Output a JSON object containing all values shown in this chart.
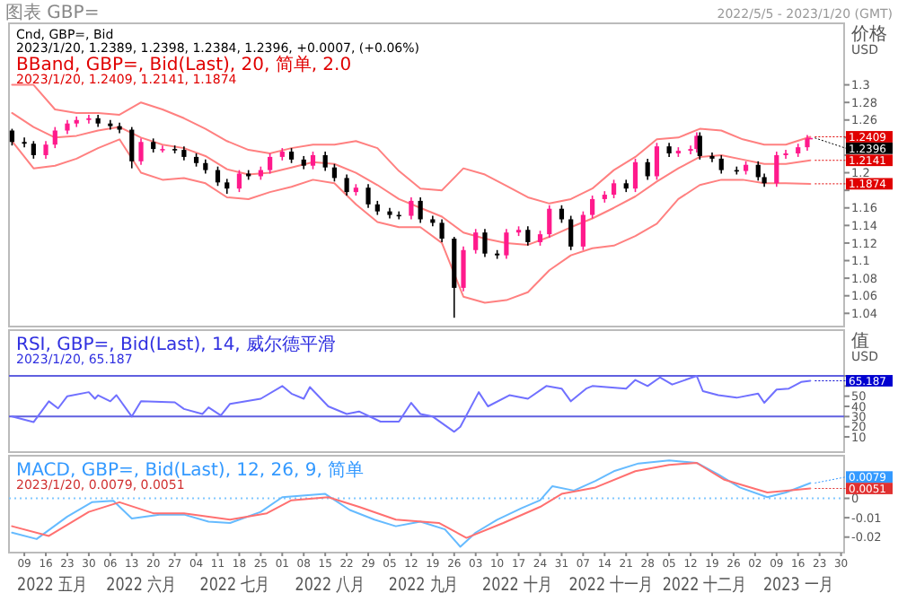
{
  "chart_data": [
    {
      "type": "candlestick",
      "title": "图表 GBP=",
      "subtitle": "2022/5/5 - 2023/1/20 (GMT)",
      "ylabel": "价格 USD",
      "tick_labels": "y",
      "annotations": [
        "Cnd, GBP=, Bid",
        "2023/1/20, 1.2389, 1.2398, 1.2384, 1.2396, +0.0007, (+0.06%)",
        "BBand, GBP=, Bid(Last), 20, 简单, 2.0",
        "2023/1/20, 1.2409, 1.2141, 1.1874",
        {
          "text": "1.2409",
          "x": "2023-01-20",
          "y": 1.2409
        },
        {
          "text": "1.2396",
          "x": "2023-01-20",
          "y": 1.2396
        },
        {
          "text": "1.2141",
          "x": "2023-01-20",
          "y": 1.2141
        },
        {
          "text": "1.1874",
          "x": "2023-01-20",
          "y": 1.1874
        }
      ],
      "xlim": [
        "2022-05-04",
        "2023-01-31"
      ],
      "ylim": [
        1.025,
        1.37
      ],
      "yticks": [
        1.04,
        1.06,
        1.08,
        1.1,
        1.12,
        1.14,
        1.16,
        {
          "value": 1.18,
          "label": null
        },
        1.2,
        {
          "value": 1.22,
          "label": null
        },
        {
          "value": 1.24,
          "label": null
        },
        1.26,
        1.28,
        1.3
      ],
      "x": [
        "2022-05-05",
        "2022-05-09",
        "2022-05-12",
        "2022-05-16",
        "2022-05-19",
        "2022-05-23",
        "2022-05-26",
        "2022-05-30",
        "2022-06-02",
        "2022-06-06",
        "2022-06-09",
        "2022-06-13",
        "2022-06-16",
        "2022-06-20",
        "2022-06-23",
        "2022-06-27",
        "2022-06-30",
        "2022-07-04",
        "2022-07-07",
        "2022-07-11",
        "2022-07-14",
        "2022-07-18",
        "2022-07-21",
        "2022-07-25",
        "2022-07-28",
        "2022-08-01",
        "2022-08-04",
        "2022-08-08",
        "2022-08-11",
        "2022-08-15",
        "2022-08-18",
        "2022-08-22",
        "2022-08-25",
        "2022-08-29",
        "2022-09-01",
        "2022-09-05",
        "2022-09-08",
        "2022-09-12",
        "2022-09-15",
        "2022-09-19",
        "2022-09-22",
        "2022-09-26",
        "2022-09-29",
        "2022-10-03",
        "2022-10-06",
        "2022-10-10",
        "2022-10-13",
        "2022-10-17",
        "2022-10-20",
        "2022-10-24",
        "2022-10-27",
        "2022-10-31",
        "2022-11-03",
        "2022-11-07",
        "2022-11-10",
        "2022-11-14",
        "2022-11-17",
        "2022-11-21",
        "2022-11-24",
        "2022-11-28",
        "2022-12-01",
        "2022-12-05",
        "2022-12-08",
        "2022-12-12",
        "2022-12-14",
        "2022-12-15",
        "2022-12-19",
        "2022-12-22",
        "2022-12-27",
        "2022-12-30",
        "2023-01-03",
        "2023-01-05",
        "2023-01-09",
        "2023-01-12",
        "2023-01-16",
        "2023-01-19",
        "2023-01-20"
      ],
      "ohlc": [
        [
          1.248,
          1.25,
          1.231,
          1.235
        ],
        [
          1.235,
          1.24,
          1.229,
          1.233
        ],
        [
          1.233,
          1.236,
          1.216,
          1.22
        ],
        [
          1.22,
          1.236,
          1.216,
          1.232
        ],
        [
          1.232,
          1.252,
          1.228,
          1.248
        ],
        [
          1.248,
          1.26,
          1.244,
          1.256
        ],
        [
          1.256,
          1.264,
          1.252,
          1.26
        ],
        [
          1.26,
          1.266,
          1.256,
          1.262
        ],
        [
          1.262,
          1.266,
          1.252,
          1.256
        ],
        [
          1.256,
          1.26,
          1.249,
          1.253
        ],
        [
          1.253,
          1.257,
          1.245,
          1.249
        ],
        [
          1.249,
          1.252,
          1.205,
          1.213
        ],
        [
          1.213,
          1.239,
          1.209,
          1.235
        ],
        [
          1.235,
          1.239,
          1.223,
          1.227
        ],
        [
          1.227,
          1.231,
          1.223,
          1.227
        ],
        [
          1.227,
          1.231,
          1.222,
          1.226
        ],
        [
          1.226,
          1.23,
          1.214,
          1.218
        ],
        [
          1.218,
          1.222,
          1.207,
          1.211
        ],
        [
          1.211,
          1.215,
          1.199,
          1.203
        ],
        [
          1.203,
          1.207,
          1.185,
          1.189
        ],
        [
          1.189,
          1.193,
          1.176,
          1.182
        ],
        [
          1.182,
          1.203,
          1.178,
          1.199
        ],
        [
          1.199,
          1.203,
          1.192,
          1.196
        ],
        [
          1.196,
          1.207,
          1.192,
          1.203
        ],
        [
          1.203,
          1.222,
          1.199,
          1.218
        ],
        [
          1.218,
          1.228,
          1.214,
          1.224
        ],
        [
          1.224,
          1.228,
          1.211,
          1.215
        ],
        [
          1.215,
          1.219,
          1.204,
          1.208
        ],
        [
          1.208,
          1.224,
          1.204,
          1.22
        ],
        [
          1.22,
          1.224,
          1.202,
          1.206
        ],
        [
          1.206,
          1.21,
          1.19,
          1.194
        ],
        [
          1.194,
          1.198,
          1.174,
          1.178
        ],
        [
          1.178,
          1.187,
          1.174,
          1.183
        ],
        [
          1.183,
          1.187,
          1.16,
          1.164
        ],
        [
          1.164,
          1.168,
          1.152,
          1.156
        ],
        [
          1.156,
          1.16,
          1.148,
          1.152
        ],
        [
          1.152,
          1.156,
          1.147,
          1.151
        ],
        [
          1.151,
          1.172,
          1.147,
          1.168
        ],
        [
          1.168,
          1.172,
          1.143,
          1.147
        ],
        [
          1.147,
          1.151,
          1.139,
          1.143
        ],
        [
          1.143,
          1.147,
          1.121,
          1.125
        ],
        [
          1.125,
          1.127,
          1.035,
          1.069
        ],
        [
          1.069,
          1.116,
          1.065,
          1.112
        ],
        [
          1.112,
          1.136,
          1.108,
          1.132
        ],
        [
          1.132,
          1.136,
          1.104,
          1.108
        ],
        [
          1.108,
          1.112,
          1.102,
          1.106
        ],
        [
          1.106,
          1.136,
          1.102,
          1.132
        ],
        [
          1.132,
          1.139,
          1.128,
          1.135
        ],
        [
          1.135,
          1.139,
          1.117,
          1.121
        ],
        [
          1.121,
          1.134,
          1.117,
          1.13
        ],
        [
          1.13,
          1.163,
          1.126,
          1.159
        ],
        [
          1.159,
          1.163,
          1.143,
          1.147
        ],
        [
          1.147,
          1.151,
          1.112,
          1.116
        ],
        [
          1.116,
          1.156,
          1.112,
          1.152
        ],
        [
          1.152,
          1.174,
          1.148,
          1.17
        ],
        [
          1.17,
          1.179,
          1.166,
          1.175
        ],
        [
          1.175,
          1.192,
          1.171,
          1.188
        ],
        [
          1.188,
          1.192,
          1.178,
          1.182
        ],
        [
          1.182,
          1.216,
          1.178,
          1.212
        ],
        [
          1.212,
          1.216,
          1.192,
          1.196
        ],
        [
          1.196,
          1.234,
          1.192,
          1.23
        ],
        [
          1.23,
          1.234,
          1.218,
          1.222
        ],
        [
          1.222,
          1.229,
          1.218,
          1.225
        ],
        [
          1.225,
          1.231,
          1.221,
          1.227
        ],
        [
          1.227,
          1.246,
          1.223,
          1.242
        ],
        [
          1.242,
          1.246,
          1.215,
          1.219
        ],
        [
          1.219,
          1.223,
          1.212,
          1.216
        ],
        [
          1.216,
          1.22,
          1.199,
          1.203
        ],
        [
          1.203,
          1.207,
          1.198,
          1.202
        ],
        [
          1.202,
          1.213,
          1.198,
          1.209
        ],
        [
          1.209,
          1.213,
          1.191,
          1.195
        ],
        [
          1.195,
          1.199,
          1.184,
          1.188
        ],
        [
          1.188,
          1.224,
          1.184,
          1.22
        ],
        [
          1.22,
          1.226,
          1.216,
          1.222
        ],
        [
          1.222,
          1.233,
          1.218,
          1.229
        ],
        [
          1.229,
          1.243,
          1.225,
          1.239
        ],
        [
          1.2389,
          1.2398,
          1.2384,
          1.2396
        ]
      ],
      "series": [
        {
          "type": "line",
          "color": "#ff8080",
          "x": [
            "2022-05-05",
            "2022-05-12",
            "2022-05-19",
            "2022-05-26",
            "2022-06-02",
            "2022-06-09",
            "2022-06-16",
            "2022-06-23",
            "2022-06-30",
            "2022-07-07",
            "2022-07-14",
            "2022-07-21",
            "2022-07-28",
            "2022-08-04",
            "2022-08-11",
            "2022-08-18",
            "2022-08-25",
            "2022-09-01",
            "2022-09-08",
            "2022-09-15",
            "2022-09-22",
            "2022-09-29",
            "2022-10-06",
            "2022-10-13",
            "2022-10-20",
            "2022-10-27",
            "2022-11-03",
            "2022-11-10",
            "2022-11-17",
            "2022-11-24",
            "2022-12-01",
            "2022-12-08",
            "2022-12-15",
            "2022-12-22",
            "2022-12-29",
            "2023-01-05",
            "2023-01-12",
            "2023-01-20"
          ],
          "values": [
            1.3,
            1.3,
            1.272,
            1.268,
            1.268,
            1.266,
            1.28,
            1.272,
            1.262,
            1.25,
            1.236,
            1.226,
            1.222,
            1.228,
            1.232,
            1.232,
            1.236,
            1.228,
            1.202,
            1.182,
            1.18,
            1.205,
            1.198,
            1.185,
            1.172,
            1.165,
            1.17,
            1.182,
            1.203,
            1.218,
            1.238,
            1.24,
            1.25,
            1.248,
            1.238,
            1.232,
            1.232,
            1.2409
          ]
        },
        {
          "type": "line",
          "color": "#ff8080",
          "x": [
            "2022-05-05",
            "2022-05-12",
            "2022-05-19",
            "2022-05-26",
            "2022-06-02",
            "2022-06-09",
            "2022-06-16",
            "2022-06-23",
            "2022-06-30",
            "2022-07-07",
            "2022-07-14",
            "2022-07-21",
            "2022-07-28",
            "2022-08-04",
            "2022-08-11",
            "2022-08-18",
            "2022-08-25",
            "2022-09-01",
            "2022-09-08",
            "2022-09-15",
            "2022-09-22",
            "2022-09-29",
            "2022-10-06",
            "2022-10-13",
            "2022-10-20",
            "2022-10-27",
            "2022-11-03",
            "2022-11-10",
            "2022-11-17",
            "2022-11-24",
            "2022-12-01",
            "2022-12-08",
            "2022-12-15",
            "2022-12-22",
            "2022-12-29",
            "2023-01-05",
            "2023-01-12",
            "2023-01-20"
          ],
          "values": [
            1.268,
            1.252,
            1.24,
            1.242,
            1.248,
            1.252,
            1.24,
            1.232,
            1.228,
            1.219,
            1.204,
            1.198,
            1.2,
            1.206,
            1.212,
            1.21,
            1.2,
            1.186,
            1.17,
            1.16,
            1.15,
            1.132,
            1.125,
            1.12,
            1.118,
            1.127,
            1.138,
            1.148,
            1.16,
            1.173,
            1.19,
            1.205,
            1.218,
            1.22,
            1.215,
            1.21,
            1.21,
            1.2141
          ]
        },
        {
          "type": "line",
          "color": "#ff8080",
          "x": [
            "2022-05-05",
            "2022-05-12",
            "2022-05-19",
            "2022-05-26",
            "2022-06-02",
            "2022-06-09",
            "2022-06-16",
            "2022-06-23",
            "2022-06-30",
            "2022-07-07",
            "2022-07-14",
            "2022-07-21",
            "2022-07-28",
            "2022-08-04",
            "2022-08-11",
            "2022-08-18",
            "2022-08-25",
            "2022-09-01",
            "2022-09-08",
            "2022-09-15",
            "2022-09-22",
            "2022-09-29",
            "2022-10-06",
            "2022-10-13",
            "2022-10-20",
            "2022-10-27",
            "2022-11-03",
            "2022-11-10",
            "2022-11-17",
            "2022-11-24",
            "2022-12-01",
            "2022-12-08",
            "2022-12-15",
            "2022-12-22",
            "2022-12-29",
            "2023-01-05",
            "2023-01-12",
            "2023-01-20"
          ],
          "values": [
            1.236,
            1.205,
            1.208,
            1.216,
            1.228,
            1.238,
            1.2,
            1.192,
            1.194,
            1.188,
            1.172,
            1.17,
            1.178,
            1.184,
            1.192,
            1.188,
            1.164,
            1.144,
            1.138,
            1.138,
            1.12,
            1.059,
            1.052,
            1.055,
            1.064,
            1.089,
            1.106,
            1.114,
            1.117,
            1.128,
            1.142,
            1.17,
            1.186,
            1.192,
            1.192,
            1.188,
            1.188,
            1.1874
          ]
        }
      ]
    },
    {
      "type": "line",
      "ylabel": "值 USD",
      "tick_labels": "y",
      "annotations": [
        "RSI, GBP=, Bid(Last), 14, 威尔德平滑",
        "2023/1/20, 65.187",
        {
          "text": "65.187",
          "x": "2023-01-20",
          "y": 65.187
        }
      ],
      "xlim": [
        "2022-05-04",
        "2023-01-31"
      ],
      "ylim": [
        -5,
        115
      ],
      "yticks": [
        10,
        20,
        30,
        40,
        50,
        {
          "value": 60,
          "label": null
        },
        {
          "value": 70,
          "label": null
        }
      ],
      "ref_lines": [
        {
          "axis": "y",
          "value": 70,
          "color": "#6060e0"
        },
        {
          "axis": "y",
          "value": 30,
          "color": "#6060e0"
        }
      ],
      "series": [
        {
          "color": "#7070ff",
          "x": [
            "2022-05-05",
            "2022-05-12",
            "2022-05-17",
            "2022-05-20",
            "2022-05-23",
            "2022-05-30",
            "2022-06-01",
            "2022-06-02",
            "2022-06-06",
            "2022-06-08",
            "2022-06-13",
            "2022-06-16",
            "2022-06-27",
            "2022-06-30",
            "2022-07-06",
            "2022-07-08",
            "2022-07-12",
            "2022-07-15",
            "2022-07-25",
            "2022-08-01",
            "2022-08-04",
            "2022-08-08",
            "2022-08-10",
            "2022-08-16",
            "2022-08-22",
            "2022-08-26",
            "2022-09-02",
            "2022-09-08",
            "2022-09-12",
            "2022-09-15",
            "2022-09-19",
            "2022-09-26",
            "2022-09-28",
            "2022-10-04",
            "2022-10-07",
            "2022-10-14",
            "2022-10-20",
            "2022-10-26",
            "2022-10-31",
            "2022-11-03",
            "2022-11-08",
            "2022-11-10",
            "2022-11-21",
            "2022-11-24",
            "2022-11-28",
            "2022-12-02",
            "2022-12-06",
            "2022-12-14",
            "2022-12-16",
            "2022-12-21",
            "2022-12-27",
            "2023-01-03",
            "2023-01-05",
            "2023-01-09",
            "2023-01-13",
            "2023-01-17",
            "2023-01-20"
          ],
          "values": [
            30,
            24.5,
            45,
            38,
            50,
            54,
            47.5,
            51,
            45,
            51,
            30,
            45,
            44,
            37.5,
            32.5,
            39,
            31,
            42.5,
            47.5,
            60,
            52.5,
            47.5,
            59,
            40,
            32.5,
            35,
            25,
            25,
            43.5,
            32.5,
            30,
            15,
            20,
            54,
            40,
            51,
            47.5,
            60,
            57.5,
            45,
            57.5,
            60,
            57.5,
            66,
            60,
            68.5,
            61.5,
            70,
            55,
            51,
            48.5,
            52.5,
            43.5,
            56.5,
            57.5,
            64,
            65.187
          ]
        }
      ]
    },
    {
      "type": "line",
      "annotations": [
        "MACD, GBP=, Bid(Last), 12, 26, 9, 简单",
        "2023/1/20, 0.0079, 0.0051",
        {
          "text": "0.0079",
          "x": "2023-01-20",
          "y": 0.0079
        },
        {
          "text": "0.0051",
          "x": "2023-01-20",
          "y": 0.0051
        },
        "2022 五月",
        "2022 六月",
        "2022 七月",
        "2022 八月",
        "2022 九月",
        "2022 十月",
        "2022 十一月",
        "2022 十二月",
        "2023 一月"
      ],
      "xlim": [
        "2022-05-04",
        "2023-01-31"
      ],
      "ylim": [
        -0.028,
        0.022
      ],
      "yticks": [
        -0.02,
        -0.01,
        0
      ],
      "xticks": [
        {
          "value": "2022-05-09",
          "label": "09"
        },
        {
          "value": "2022-05-16",
          "label": "16"
        },
        {
          "value": "2022-05-23",
          "label": "23"
        },
        {
          "value": "2022-05-30",
          "label": "30"
        },
        {
          "value": "2022-06-06",
          "label": "06"
        },
        {
          "value": "2022-06-13",
          "label": "13"
        },
        {
          "value": "2022-06-20",
          "label": "20"
        },
        {
          "value": "2022-06-27",
          "label": "27"
        },
        {
          "value": "2022-07-04",
          "label": "04"
        },
        {
          "value": "2022-07-11",
          "label": "11"
        },
        {
          "value": "2022-07-18",
          "label": "18"
        },
        {
          "value": "2022-07-25",
          "label": "25"
        },
        {
          "value": "2022-08-01",
          "label": "01"
        },
        {
          "value": "2022-08-08",
          "label": "08"
        },
        {
          "value": "2022-08-15",
          "label": "15"
        },
        {
          "value": "2022-08-22",
          "label": "22"
        },
        {
          "value": "2022-08-29",
          "label": "29"
        },
        {
          "value": "2022-09-05",
          "label": "05"
        },
        {
          "value": "2022-09-12",
          "label": "12"
        },
        {
          "value": "2022-09-19",
          "label": "19"
        },
        {
          "value": "2022-09-26",
          "label": "26"
        },
        {
          "value": "2022-10-03",
          "label": "03"
        },
        {
          "value": "2022-10-10",
          "label": "10"
        },
        {
          "value": "2022-10-17",
          "label": "17"
        },
        {
          "value": "2022-10-24",
          "label": "24"
        },
        {
          "value": "2022-10-31",
          "label": "31"
        },
        {
          "value": "2022-11-07",
          "label": "07"
        },
        {
          "value": "2022-11-14",
          "label": "14"
        },
        {
          "value": "2022-11-21",
          "label": "21"
        },
        {
          "value": "2022-11-28",
          "label": "28"
        },
        {
          "value": "2022-12-05",
          "label": "05"
        },
        {
          "value": "2022-12-12",
          "label": "12"
        },
        {
          "value": "2022-12-19",
          "label": "19"
        },
        {
          "value": "2022-12-26",
          "label": "26"
        },
        {
          "value": "2023-01-02",
          "label": "02"
        },
        {
          "value": "2023-01-09",
          "label": "09"
        },
        {
          "value": "2023-01-16",
          "label": "16"
        },
        {
          "value": "2023-01-23",
          "label": "23"
        },
        {
          "value": "2023-01-30",
          "label": "30"
        }
      ],
      "ref_lines": [
        {
          "axis": "y",
          "value": 0,
          "color": "#80c8ff",
          "line_style": "dotted"
        }
      ],
      "series": [
        {
          "color": "#66bbff",
          "x": [
            "2022-05-05",
            "2022-05-13",
            "2022-05-23",
            "2022-05-31",
            "2022-06-07",
            "2022-06-13",
            "2022-06-22",
            "2022-06-30",
            "2022-07-08",
            "2022-07-15",
            "2022-07-25",
            "2022-08-01",
            "2022-08-15",
            "2022-08-23",
            "2022-08-31",
            "2022-09-07",
            "2022-09-15",
            "2022-09-23",
            "2022-09-28",
            "2022-10-03",
            "2022-10-10",
            "2022-10-18",
            "2022-10-24",
            "2022-10-28",
            "2022-11-04",
            "2022-11-11",
            "2022-11-17",
            "2022-11-25",
            "2022-12-05",
            "2022-12-14",
            "2022-12-21",
            "2022-12-28",
            "2023-01-06",
            "2023-01-12",
            "2023-01-20"
          ],
          "values": [
            -0.0177,
            -0.021,
            -0.0094,
            -0.002,
            -0.0013,
            -0.0104,
            -0.0084,
            -0.0084,
            -0.012,
            -0.0127,
            -0.007,
            0.0006,
            0.0023,
            -0.006,
            -0.011,
            -0.0144,
            -0.012,
            -0.016,
            -0.025,
            -0.0177,
            -0.011,
            -0.005,
            -0.001,
            0.0063,
            0.004,
            0.009,
            0.014,
            0.018,
            0.0196,
            0.0183,
            0.0123,
            0.0056,
            0.0006,
            0.003,
            0.0079
          ]
        },
        {
          "color": "#ff7070",
          "x": [
            "2022-05-05",
            "2022-05-17",
            "2022-05-30",
            "2022-06-09",
            "2022-06-20",
            "2022-06-30",
            "2022-07-15",
            "2022-07-27",
            "2022-08-04",
            "2022-08-16",
            "2022-08-26",
            "2022-09-07",
            "2022-09-21",
            "2022-09-30",
            "2022-10-12",
            "2022-10-24",
            "2022-10-31",
            "2022-11-11",
            "2022-11-24",
            "2022-12-05",
            "2022-12-14",
            "2022-12-23",
            "2023-01-06",
            "2023-01-20"
          ],
          "values": [
            -0.0144,
            -0.0194,
            -0.007,
            -0.002,
            -0.0077,
            -0.0077,
            -0.011,
            -0.0077,
            -0.001,
            0.0006,
            -0.0044,
            -0.011,
            -0.0127,
            -0.0204,
            -0.0127,
            -0.0044,
            0.0023,
            0.0056,
            0.014,
            0.0173,
            0.0183,
            0.0096,
            0.003,
            0.0051
          ]
        }
      ]
    }
  ]
}
